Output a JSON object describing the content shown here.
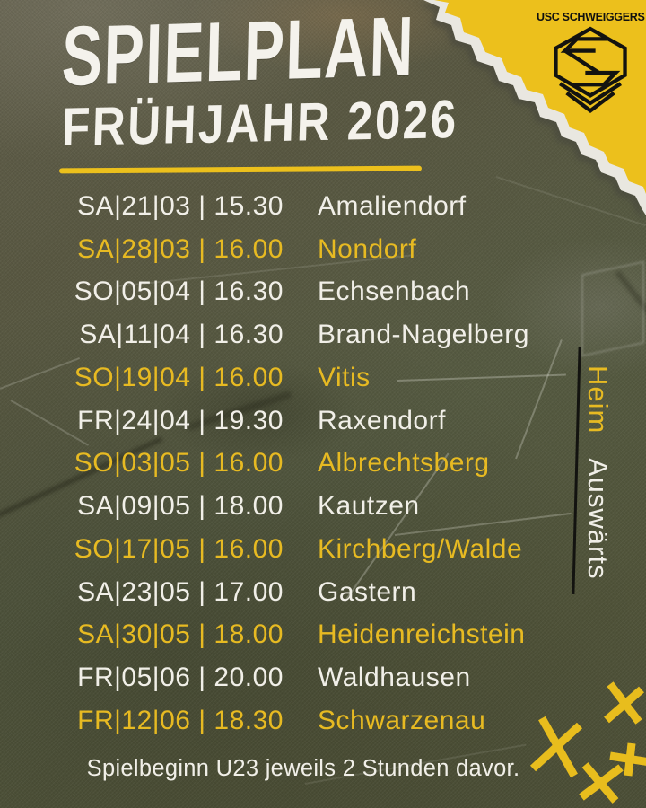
{
  "header": {
    "title_line1": "SPIELPLAN",
    "title_line2": "FRÜHJAHR 2026"
  },
  "club": {
    "name": "USC SCHWEIGGERS"
  },
  "schedule": {
    "rows": [
      {
        "datetime": "SA|21|03 | 15.30",
        "opponent": "Amaliendorf",
        "type": "auswaerts"
      },
      {
        "datetime": "SA|28|03 | 16.00",
        "opponent": "Nondorf",
        "type": "heim"
      },
      {
        "datetime": "SO|05|04 | 16.30",
        "opponent": "Echsenbach",
        "type": "auswaerts"
      },
      {
        "datetime": "SA|11|04 | 16.30",
        "opponent": "Brand-Nagelberg",
        "type": "auswaerts"
      },
      {
        "datetime": "SO|19|04 | 16.00",
        "opponent": "Vitis",
        "type": "heim"
      },
      {
        "datetime": "FR|24|04 | 19.30",
        "opponent": "Raxendorf",
        "type": "auswaerts"
      },
      {
        "datetime": "SO|03|05 | 16.00",
        "opponent": "Albrechtsberg",
        "type": "heim"
      },
      {
        "datetime": "SA|09|05 | 18.00",
        "opponent": "Kautzen",
        "type": "auswaerts"
      },
      {
        "datetime": "SO|17|05 | 16.00",
        "opponent": "Kirchberg/Walde",
        "type": "heim"
      },
      {
        "datetime": "SA|23|05 | 17.00",
        "opponent": "Gastern",
        "type": "auswaerts"
      },
      {
        "datetime": "SA|30|05 | 18.00",
        "opponent": "Heidenreichstein",
        "type": "heim"
      },
      {
        "datetime": "FR|05|06 | 20.00",
        "opponent": "Waldhausen",
        "type": "auswaerts"
      },
      {
        "datetime": "FR|12|06 | 18.30",
        "opponent": "Schwarzenau",
        "type": "heim"
      }
    ]
  },
  "legend": {
    "heim": "Heim",
    "auswaerts": "Auswärts"
  },
  "footer": {
    "note": "Spielbeginn U23 jeweils 2 Stunden davor."
  },
  "icons": {
    "club_emblem": "hexagon-s-monogram",
    "decorations": [
      "torn-paper-splash",
      "x-marks",
      "title-underline",
      "legend-divider-line"
    ]
  },
  "colors": {
    "accent_yellow": "#e7ba22",
    "splash_yellow": "#ecc01c",
    "text_white": "#f1efe8",
    "background_olive": "#565741",
    "logo_black": "#131310"
  }
}
